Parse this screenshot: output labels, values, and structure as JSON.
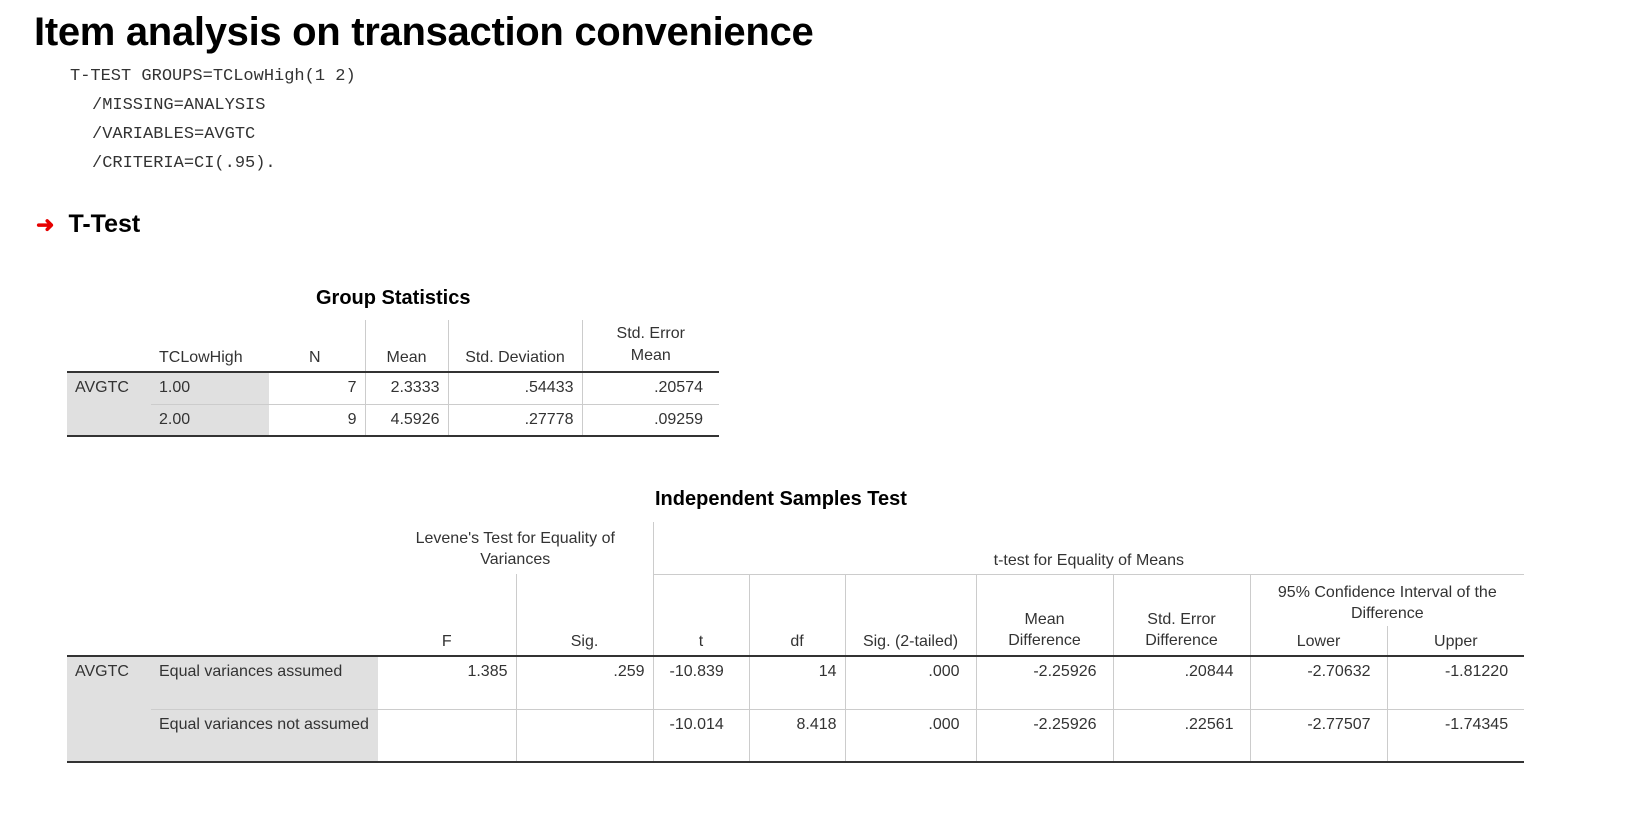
{
  "page_title": "Item analysis on transaction convenience",
  "syntax_lines": [
    "T-TEST GROUPS=TCLowHigh(1 2)",
    "/MISSING=ANALYSIS",
    "/VARIABLES=AVGTC",
    "/CRITERIA=CI(.95)."
  ],
  "section_title": "T-Test",
  "colors": {
    "arrow": "#e60000",
    "row_header_bg": "#e0e0e0",
    "rule": "#333333"
  },
  "group_stats": {
    "caption": "Group Statistics",
    "headers": {
      "group": "TCLowHigh",
      "n": "N",
      "mean": "Mean",
      "sd": "Std. Deviation",
      "se": "Std. Error Mean"
    },
    "variable": "AVGTC",
    "rows": [
      {
        "group": "1.00",
        "n": "7",
        "mean": "2.3333",
        "sd": ".54433",
        "se": ".20574"
      },
      {
        "group": "2.00",
        "n": "9",
        "mean": "4.5926",
        "sd": ".27778",
        "se": ".09259"
      }
    ]
  },
  "ind_test": {
    "caption": "Independent Samples Test",
    "levene_header": "Levene's Test for Equality of Variances",
    "ttest_header": "t-test for Equality of Means",
    "ci_header": "95% Confidence Interval of the Difference",
    "cols": {
      "f": "F",
      "sig": "Sig.",
      "t": "t",
      "df": "df",
      "sig2": "Sig. (2-tailed)",
      "md": "Mean Difference",
      "sed": "Std. Error Difference",
      "lower": "Lower",
      "upper": "Upper"
    },
    "variable": "AVGTC",
    "rows": [
      {
        "label": "Equal variances assumed",
        "f": "1.385",
        "sig": ".259",
        "t": "-10.839",
        "df": "14",
        "sig2": ".000",
        "md": "-2.25926",
        "sed": ".20844",
        "lower": "-2.70632",
        "upper": "-1.81220"
      },
      {
        "label": "Equal variances not assumed",
        "f": "",
        "sig": "",
        "t": "-10.014",
        "df": "8.418",
        "sig2": ".000",
        "md": "-2.25926",
        "sed": ".22561",
        "lower": "-2.77507",
        "upper": "-1.74345"
      }
    ]
  }
}
